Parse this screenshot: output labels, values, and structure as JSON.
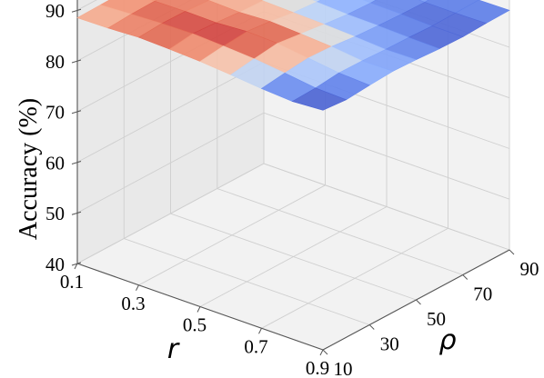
{
  "chart_data": {
    "type": "surface",
    "grid": true,
    "zlabel": "Accuracy (%)",
    "xlabel": "r",
    "ylabel": "ρ",
    "zlim": [
      40,
      90
    ],
    "z_ticks": [
      "40",
      "50",
      "60",
      "70",
      "80",
      "90"
    ],
    "r_ticks": [
      "0.1",
      "0.3",
      "0.5",
      "0.7",
      "0.9"
    ],
    "rho_ticks": [
      "10",
      "30",
      "50",
      "70",
      "90"
    ],
    "r_values": [
      0.1,
      0.2,
      0.3,
      0.4,
      0.5,
      0.6,
      0.7,
      0.8,
      0.9
    ],
    "rho_values": [
      10,
      20,
      30,
      40,
      50,
      60,
      70,
      80,
      90
    ],
    "z_values": [
      [
        88.5,
        88.6,
        88.7,
        88.8,
        88.6,
        88.7,
        88.5,
        88.4,
        88.2
      ],
      [
        88.6,
        88.9,
        89.0,
        88.8,
        88.6,
        88.5,
        88.4,
        88.3,
        88.0
      ],
      [
        88.9,
        89.2,
        89.1,
        88.8,
        88.7,
        88.5,
        88.3,
        88.1,
        87.9
      ],
      [
        88.7,
        89.3,
        89.0,
        88.6,
        88.4,
        88.2,
        87.9,
        87.8,
        87.7
      ],
      [
        88.4,
        89.0,
        89.4,
        88.9,
        88.2,
        87.8,
        87.6,
        87.7,
        87.5
      ],
      [
        87.9,
        88.6,
        89.2,
        88.6,
        88.0,
        87.5,
        87.3,
        87.4,
        87.6
      ],
      [
        87.3,
        87.9,
        88.4,
        88.2,
        87.7,
        87.4,
        87.2,
        87.1,
        87.4
      ],
      [
        86.9,
        87.1,
        87.6,
        87.5,
        87.3,
        87.2,
        87.0,
        87.1,
        87.2
      ],
      [
        87.3,
        86.9,
        87.3,
        87.6,
        87.4,
        87.1,
        87.0,
        87.2,
        87.3
      ]
    ],
    "colormap": "coolwarm"
  }
}
